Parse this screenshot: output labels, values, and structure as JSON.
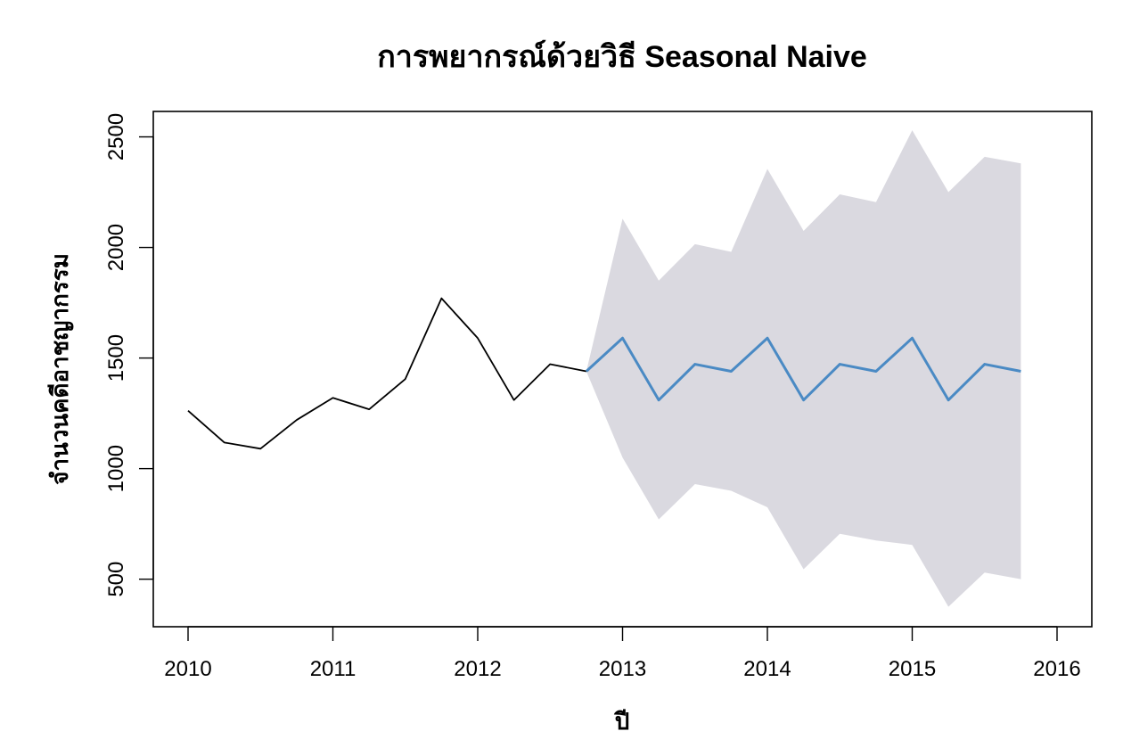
{
  "chart_data": {
    "type": "line",
    "title": "การพยากรณ์ด้วยวิธี Seasonal Naive",
    "xlabel": "ปี",
    "ylabel": "จำนวนคดีอาชญากรรม",
    "xlim": [
      2009.76,
      2016.24
    ],
    "ylim": [
      285,
      2615
    ],
    "x_ticks": [
      "2010",
      "2011",
      "2012",
      "2013",
      "2014",
      "2015",
      "2016"
    ],
    "y_ticks": [
      "500",
      "1000",
      "1500",
      "2000",
      "2500"
    ],
    "grid": false,
    "legend": "none",
    "series": [
      {
        "role": "observed",
        "color": "#000000",
        "x": [
          2010.0,
          2010.25,
          2010.5,
          2010.75,
          2011.0,
          2011.25,
          2011.5,
          2011.75,
          2012.0,
          2012.25,
          2012.5,
          2012.75
        ],
        "values": [
          1262,
          1118,
          1090,
          1220,
          1320,
          1268,
          1405,
          1770,
          1590,
          1310,
          1472,
          1440
        ]
      },
      {
        "role": "forecast",
        "color": "#4a8ac4",
        "x": [
          2012.75,
          2013.0,
          2013.25,
          2013.5,
          2013.75,
          2014.0,
          2014.25,
          2014.5,
          2014.75,
          2015.0,
          2015.25,
          2015.5,
          2015.75
        ],
        "values": [
          1440,
          1590,
          1310,
          1472,
          1440,
          1590,
          1310,
          1472,
          1440,
          1590,
          1310,
          1472,
          1440
        ]
      }
    ],
    "interval": {
      "color": "#dad9e0",
      "x": [
        2012.75,
        2013.0,
        2013.25,
        2013.5,
        2013.75,
        2014.0,
        2014.25,
        2014.5,
        2014.75,
        2015.0,
        2015.25,
        2015.5,
        2015.75
      ],
      "upper": [
        1440,
        2130,
        1850,
        2015,
        1980,
        2355,
        2075,
        2240,
        2205,
        2530,
        2250,
        2410,
        2380
      ],
      "lower": [
        1440,
        1050,
        770,
        930,
        900,
        825,
        545,
        705,
        675,
        655,
        375,
        530,
        500
      ]
    }
  }
}
